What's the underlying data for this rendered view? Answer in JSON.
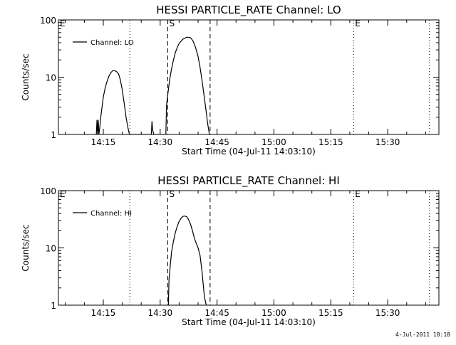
{
  "chart_data": [
    {
      "type": "line",
      "title": "HESSI PARTICLE_RATE Channel: LO",
      "xlabel": "Start Time (04-Jul-11 14:03:10)",
      "ylabel": "Counts/sec",
      "yscale": "log",
      "ylim": [
        1,
        100
      ],
      "xlim": [
        "14:03:10",
        "15:43:30"
      ],
      "x_ticks": [
        "14:15",
        "14:30",
        "14:45",
        "15:00",
        "15:15",
        "15:30"
      ],
      "y_ticks": [
        "1",
        "10",
        "100"
      ],
      "grid": false,
      "legend_position": "top-left",
      "series": [
        {
          "name": "Channel: LO",
          "color": "#000000",
          "x": [
            "14:13:10",
            "14:13:20",
            "14:13:30",
            "14:13:40",
            "14:13:50",
            "14:14:00",
            "14:14:20",
            "14:14:40",
            "14:15:00",
            "14:15:30",
            "14:16:00",
            "14:16:30",
            "14:17:00",
            "14:17:30",
            "14:18:00",
            "14:18:30",
            "14:19:00",
            "14:19:30",
            "14:20:00",
            "14:20:30",
            "14:21:00",
            "14:21:30",
            "14:21:50",
            "14:22:00",
            "14:27:40",
            "14:27:50",
            "14:28:00",
            "14:28:20",
            "14:31:30",
            "14:31:40",
            "14:32:00",
            "14:32:30",
            "14:33:00",
            "14:33:30",
            "14:34:00",
            "14:34:30",
            "14:35:00",
            "14:36:00",
            "14:37:00",
            "14:38:00",
            "14:38:40",
            "14:39:20",
            "14:40:00",
            "14:40:30",
            "14:41:00",
            "14:41:30",
            "14:42:00",
            "14:42:30",
            "14:42:50",
            "14:43:00"
          ],
          "y": [
            1,
            1.8,
            1,
            1.8,
            1,
            1.2,
            2.0,
            3.0,
            4.5,
            6.5,
            8.5,
            10.5,
            12.0,
            13.0,
            13.0,
            12.5,
            11.5,
            9.0,
            6.0,
            3.5,
            2.0,
            1.3,
            1.05,
            1,
            1,
            1.7,
            1.2,
            1,
            1,
            3.2,
            5.0,
            9.0,
            14.0,
            20.0,
            27.0,
            33.0,
            39.0,
            46.0,
            50.0,
            49.0,
            43.0,
            33.0,
            23.0,
            15.0,
            9.0,
            5.2,
            2.9,
            1.6,
            1.15,
            1
          ]
        }
      ],
      "annotations": [
        {
          "label": "E",
          "time": "14:03:10",
          "style": "none"
        },
        {
          "label": "",
          "time": "14:22:00",
          "style": "dotted"
        },
        {
          "label": "S",
          "time": "14:32:00",
          "style": "dashed"
        },
        {
          "label": "",
          "time": "14:43:10",
          "style": "dashed"
        },
        {
          "label": "E",
          "time": "15:21:00",
          "style": "dotted"
        },
        {
          "label": "",
          "time": "15:41:00",
          "style": "dotted"
        }
      ]
    },
    {
      "type": "line",
      "title": "HESSI PARTICLE_RATE Channel: HI",
      "xlabel": "Start Time (04-Jul-11 14:03:10)",
      "ylabel": "Counts/sec",
      "yscale": "log",
      "ylim": [
        1,
        100
      ],
      "xlim": [
        "14:03:10",
        "15:43:30"
      ],
      "x_ticks": [
        "14:15",
        "14:30",
        "14:45",
        "15:00",
        "15:15",
        "15:30"
      ],
      "y_ticks": [
        "1",
        "10",
        "100"
      ],
      "grid": false,
      "legend_position": "top-left",
      "series": [
        {
          "name": "Channel: HI",
          "color": "#000000",
          "x": [
            "14:32:10",
            "14:32:20",
            "14:32:40",
            "14:33:00",
            "14:33:30",
            "14:34:00",
            "14:34:30",
            "14:35:00",
            "14:35:30",
            "14:36:00",
            "14:36:30",
            "14:37:00",
            "14:37:30",
            "14:38:00",
            "14:38:30",
            "14:39:00",
            "14:39:30",
            "14:40:00",
            "14:40:30",
            "14:41:00",
            "14:41:20",
            "14:41:40",
            "14:42:00",
            "14:42:10"
          ],
          "y": [
            1,
            2.8,
            5.0,
            8.5,
            13.0,
            18.5,
            24.0,
            29.0,
            33.0,
            35.5,
            36.0,
            35.0,
            31.0,
            26.0,
            20.0,
            15.0,
            12.0,
            10.0,
            7.5,
            4.0,
            2.4,
            1.4,
            1.1,
            1
          ]
        }
      ],
      "annotations": [
        {
          "label": "E",
          "time": "14:03:10",
          "style": "none"
        },
        {
          "label": "",
          "time": "14:22:00",
          "style": "dotted"
        },
        {
          "label": "S",
          "time": "14:32:00",
          "style": "dashed"
        },
        {
          "label": "",
          "time": "14:43:10",
          "style": "dashed"
        },
        {
          "label": "E",
          "time": "15:21:00",
          "style": "dotted"
        },
        {
          "label": "",
          "time": "15:41:00",
          "style": "dotted"
        }
      ]
    }
  ],
  "footer": {
    "timestamp": "4-Jul-2011 18:18"
  }
}
